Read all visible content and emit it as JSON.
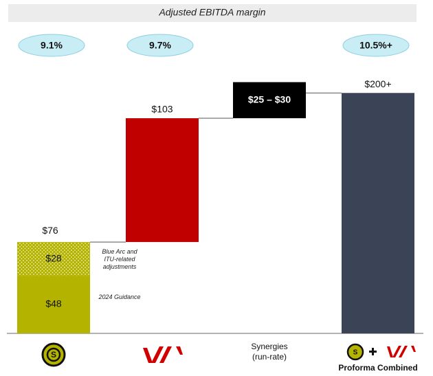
{
  "chart_data": {
    "type": "waterfall",
    "title": "Adjusted EBITDA margin",
    "ylim": [
      0,
      207
    ],
    "bars": [
      {
        "segments": [
          {
            "name": "2024 Guidance",
            "value": 48,
            "value_label": "$48"
          },
          {
            "name": "Blue Arc and ITU-related adjustments",
            "value": 28,
            "value_label": "$28"
          }
        ],
        "total": 76,
        "total_label": "$76",
        "color": "#b3b300",
        "margin": 9.1,
        "margin_label": "9.1%"
      },
      {
        "value": 103,
        "value_label": "$103",
        "color": "#c00000",
        "margin": 9.7,
        "margin_label": "9.7%"
      },
      {
        "category": "Synergies (run-rate)",
        "range": [
          25,
          30
        ],
        "value_label": "$25 – $30",
        "color": "#000000"
      },
      {
        "category": "Proforma Combined",
        "value": 200,
        "value_label": "$200+",
        "color": "#3b4456",
        "is_total": true,
        "margin": 10.5,
        "margin_label": "10.5%+"
      }
    ]
  }
}
